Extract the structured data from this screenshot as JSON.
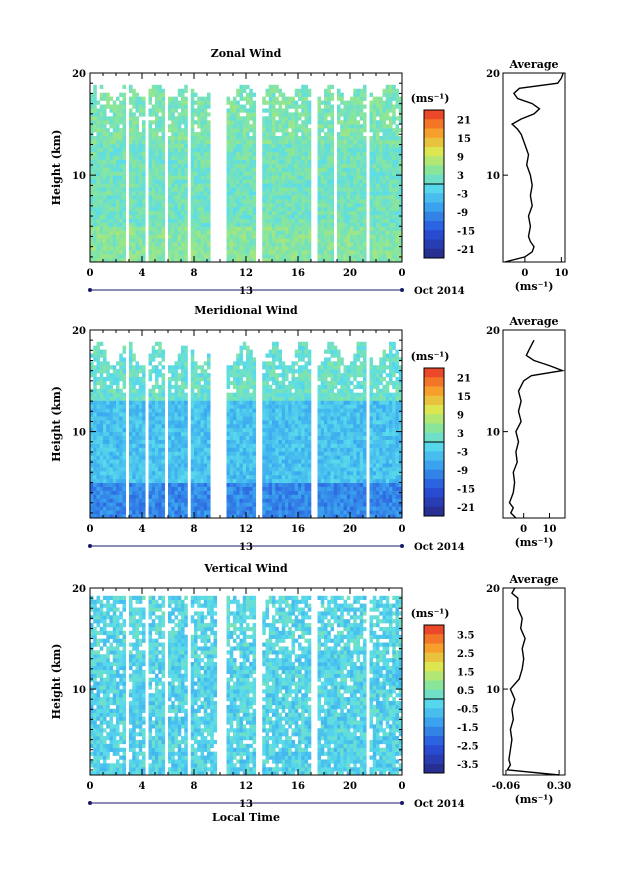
{
  "chart_data": [
    {
      "type": "heatmap",
      "title": "Zonal Wind",
      "xlabel": "",
      "ylabel": "Height (km)",
      "x_ticks": [
        "0",
        "4",
        "8",
        "12",
        "16",
        "20",
        "0"
      ],
      "x_range": [
        0,
        24
      ],
      "y_ticks": [
        "10",
        "20"
      ],
      "y_range": [
        1.5,
        20
      ],
      "date_label": "13",
      "month_label": "Oct 2014",
      "colorbar": {
        "unit": "(ms⁻¹)",
        "ticks": [
          "21",
          "15",
          "9",
          "3",
          "-3",
          "-9",
          "-15",
          "-21"
        ],
        "range": [
          -24,
          24
        ]
      },
      "field": {
        "base": 2,
        "lowlayer": 4,
        "highlayer": 3,
        "variability": 3
      },
      "gaps_hours": [
        [
          2.8,
          3.1
        ],
        [
          4.3,
          4.6
        ],
        [
          5.8,
          6.1
        ],
        [
          7.4,
          7.7
        ],
        [
          9.3,
          10.5
        ],
        [
          12.7,
          13.3
        ],
        [
          17.0,
          17.6
        ],
        [
          18.8,
          18.9
        ],
        [
          21.3,
          21.5
        ]
      ],
      "top_km": [
        17.5,
        19
      ],
      "inset": {
        "title": "Average",
        "xlabel": "(ms⁻¹)",
        "x_ticks": [
          "0",
          "10"
        ],
        "x_tick_values": [
          0,
          10
        ],
        "x_range": [
          -6,
          11
        ],
        "y_ticks": [
          "10",
          "20"
        ],
        "y_range": [
          1.5,
          20
        ],
        "profile": {
          "height_km": [
            1.5,
            2,
            2.5,
            3,
            3.5,
            4,
            5,
            6,
            7,
            8,
            9,
            10,
            11,
            12,
            13,
            14,
            14.5,
            15,
            15.5,
            16,
            16.5,
            17,
            17.5,
            18,
            18.5,
            19,
            19.5,
            20
          ],
          "values": [
            -5.5,
            0,
            2,
            2.5,
            1.5,
            1,
            1.5,
            1,
            2,
            1.5,
            2,
            1.5,
            0.5,
            1,
            0,
            -1,
            -2,
            -3.5,
            -1,
            2.5,
            4,
            2,
            -2,
            -3,
            -1.5,
            9,
            10,
            10.5
          ]
        }
      }
    },
    {
      "type": "heatmap",
      "title": "Meridional Wind",
      "xlabel": "",
      "ylabel": "Height (km)",
      "x_ticks": [
        "0",
        "4",
        "8",
        "12",
        "16",
        "20",
        "0"
      ],
      "x_range": [
        0,
        24
      ],
      "y_ticks": [
        "10",
        "20"
      ],
      "y_range": [
        1.5,
        20
      ],
      "date_label": "13",
      "month_label": "Oct 2014",
      "colorbar": {
        "unit": "(ms⁻¹)",
        "ticks": [
          "21",
          "15",
          "9",
          "3",
          "-3",
          "-9",
          "-15",
          "-21"
        ],
        "range": [
          -24,
          24
        ]
      },
      "field": {
        "base": -4,
        "lowlayer": -10,
        "highlayer": 1,
        "variability": 3
      },
      "gaps_hours": [
        [
          2.8,
          3.1
        ],
        [
          4.3,
          4.6
        ],
        [
          5.8,
          6.1
        ],
        [
          7.4,
          7.7
        ],
        [
          9.3,
          10.5
        ],
        [
          12.7,
          13.3
        ],
        [
          17.0,
          17.6
        ],
        [
          21.3,
          21.5
        ]
      ],
      "top_km": [
        16.5,
        19
      ],
      "inset": {
        "title": "Average",
        "xlabel": "(ms⁻¹)",
        "x_ticks": [
          "0",
          "10"
        ],
        "x_tick_values": [
          0,
          10
        ],
        "x_range": [
          -8,
          16
        ],
        "y_ticks": [
          "10",
          "20"
        ],
        "y_range": [
          1.5,
          20
        ],
        "profile": {
          "height_km": [
            1.5,
            2,
            2.5,
            3,
            4,
            5,
            6,
            7,
            8,
            9,
            10,
            11,
            12,
            13,
            14,
            14.5,
            15,
            15.5,
            16,
            16.5,
            17,
            17.5,
            18,
            18.5,
            19
          ],
          "values": [
            -3,
            -5,
            -4,
            -5.5,
            -4,
            -3.5,
            -4,
            -2.5,
            -3,
            -2,
            -3,
            -1,
            -2,
            -1,
            -2,
            -1,
            0,
            3,
            15,
            10,
            4,
            1,
            2,
            3,
            4
          ]
        }
      }
    },
    {
      "type": "heatmap",
      "title": "Vertical Wind",
      "xlabel": "Local Time",
      "ylabel": "Height (km)",
      "x_ticks": [
        "0",
        "4",
        "8",
        "12",
        "16",
        "20",
        "0"
      ],
      "x_range": [
        0,
        24
      ],
      "y_ticks": [
        "10",
        "20"
      ],
      "y_range": [
        1.5,
        20
      ],
      "date_label": "13",
      "month_label": "Oct 2014",
      "colorbar": {
        "unit": "(ms⁻¹)",
        "ticks": [
          "3.5",
          "2.5",
          "1.5",
          "0.5",
          "-0.5",
          "-1.5",
          "-2.5",
          "-3.5"
        ],
        "range": [
          -4,
          4
        ]
      },
      "field": {
        "base": -0.3,
        "lowlayer": -0.3,
        "highlayer": -0.2,
        "variability": 0.6
      },
      "gaps_hours": [
        [
          2.8,
          3.1
        ],
        [
          4.3,
          4.6
        ],
        [
          5.8,
          6.1
        ],
        [
          7.4,
          7.7
        ],
        [
          9.8,
          10.5
        ],
        [
          12.7,
          13.3
        ],
        [
          17.0,
          17.6
        ],
        [
          21.3,
          21.5
        ]
      ],
      "top_km": [
        19.2,
        19.2
      ],
      "inset": {
        "title": "Average",
        "xlabel": "(ms⁻¹)",
        "x_ticks": [
          "-0.06",
          "0.30"
        ],
        "x_tick_values": [
          -0.06,
          0.3
        ],
        "x_range": [
          -0.08,
          0.34
        ],
        "y_ticks": [
          "10",
          "20"
        ],
        "y_range": [
          1.5,
          20
        ],
        "profile": {
          "height_km": [
            1.5,
            2,
            2.5,
            3,
            4,
            5,
            6,
            7,
            8,
            9,
            10,
            11,
            12,
            13,
            14,
            15,
            16,
            17,
            18,
            19,
            19.5,
            20
          ],
          "values": [
            0.3,
            -0.05,
            -0.03,
            -0.04,
            -0.03,
            -0.02,
            -0.03,
            -0.01,
            -0.02,
            0.0,
            -0.03,
            0.03,
            0.05,
            0.06,
            0.05,
            0.07,
            0.04,
            0.05,
            0.02,
            0.02,
            -0.02,
            0.0
          ]
        }
      }
    }
  ]
}
